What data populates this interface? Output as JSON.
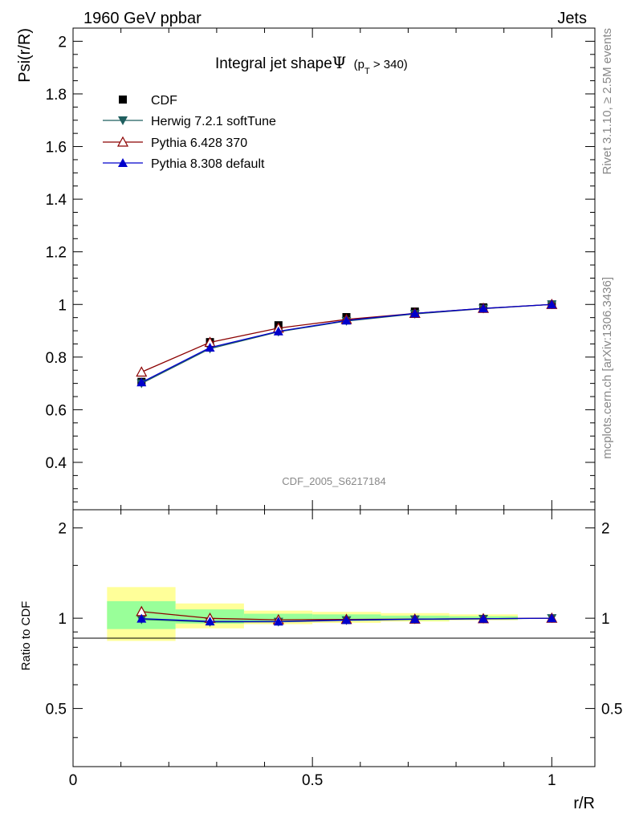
{
  "header": {
    "left": "1960 GeV ppbar",
    "right": "Jets"
  },
  "side_labels": {
    "rivet": "Rivet 3.1.10, ≥ 2.5M events",
    "mcplots": "mcplots.cern.ch [arXiv:1306.3436]"
  },
  "chart_data": [
    {
      "type": "line",
      "title_main": "Integral jet shape",
      "title_symbol": "Ψ",
      "title_sub_prefix": "(p",
      "title_sub_index": "T",
      "title_sub_suffix": " > 340)",
      "ylabel": "Psi(r/R)",
      "xlabel": "r/R",
      "watermark": "CDF_2005_S6217184",
      "xlim": [
        0,
        1.09
      ],
      "ylim": [
        0.22,
        2.05
      ],
      "yticks": [
        0.4,
        0.6,
        0.8,
        1,
        1.2,
        1.4,
        1.6,
        1.8,
        2
      ],
      "ytick_labels": [
        "0.4",
        "0.6",
        "0.8",
        "1",
        "1.2",
        "1.4",
        "1.6",
        "1.8",
        "2"
      ],
      "legend_position": "top-left",
      "x": [
        0.143,
        0.286,
        0.429,
        0.571,
        0.714,
        0.857,
        1.0
      ],
      "series": [
        {
          "name": "CDF",
          "color": "#000000",
          "marker": "square",
          "values": [
            0.706,
            0.857,
            0.921,
            0.952,
            0.973,
            0.989,
            1.0
          ]
        },
        {
          "name": "Herwig 7.2.1 softTune",
          "color": "#1f5f5f",
          "marker": "triangle-down",
          "values": [
            0.7,
            0.832,
            0.896,
            0.937,
            0.964,
            0.984,
            1.0
          ]
        },
        {
          "name": "Pythia 6.428 370",
          "color": "#8b0000",
          "marker": "triangle-up-open",
          "values": [
            0.743,
            0.856,
            0.91,
            0.943,
            0.966,
            0.985,
            1.0
          ]
        },
        {
          "name": "Pythia 8.308 default",
          "color": "#0000cc",
          "marker": "triangle-up",
          "values": [
            0.704,
            0.836,
            0.898,
            0.939,
            0.966,
            0.985,
            1.0
          ]
        }
      ]
    },
    {
      "type": "line",
      "ylabel": "Ratio to CDF",
      "xlabel": "r/R",
      "xlim": [
        0,
        1.09
      ],
      "ylim": [
        0.32,
        2.3
      ],
      "log_y": true,
      "yticks": [
        0.5,
        1,
        2
      ],
      "ytick_labels": [
        "0.5",
        "1",
        "2"
      ],
      "xticks": [
        0,
        0.5,
        1
      ],
      "xtick_labels": [
        "0",
        "0.5",
        "1"
      ],
      "reference_line": 1,
      "x": [
        0.143,
        0.286,
        0.429,
        0.571,
        0.714,
        0.857,
        1.0
      ],
      "bands": [
        {
          "x0": 0.071,
          "x1": 0.214,
          "yellow": [
            0.84,
            1.27
          ],
          "green": [
            0.92,
            1.14
          ]
        },
        {
          "x0": 0.214,
          "x1": 0.357,
          "yellow": [
            0.925,
            1.12
          ],
          "green": [
            0.96,
            1.07
          ]
        },
        {
          "x0": 0.357,
          "x1": 0.5,
          "yellow": [
            0.955,
            1.06
          ],
          "green": [
            0.975,
            1.035
          ]
        },
        {
          "x0": 0.5,
          "x1": 0.643,
          "yellow": [
            0.965,
            1.05
          ],
          "green": [
            0.98,
            1.03
          ]
        },
        {
          "x0": 0.643,
          "x1": 0.786,
          "yellow": [
            0.975,
            1.04
          ],
          "green": [
            0.985,
            1.02
          ]
        },
        {
          "x0": 0.786,
          "x1": 0.929,
          "yellow": [
            0.985,
            1.03
          ],
          "green": [
            0.99,
            1.015
          ]
        }
      ],
      "series": [
        {
          "name": "Herwig 7.2.1 softTune",
          "color": "#1f5f5f",
          "marker": "triangle-down",
          "values": [
            0.991,
            0.971,
            0.973,
            0.984,
            0.991,
            0.995,
            1.0
          ]
        },
        {
          "name": "Pythia 6.428 370",
          "color": "#8b0000",
          "marker": "triangle-up-open",
          "values": [
            1.052,
            0.999,
            0.988,
            0.991,
            0.993,
            0.996,
            1.0
          ]
        },
        {
          "name": "Pythia 8.308 default",
          "color": "#0000cc",
          "marker": "triangle-up",
          "values": [
            0.997,
            0.976,
            0.975,
            0.986,
            0.993,
            0.996,
            1.0
          ]
        }
      ]
    }
  ]
}
